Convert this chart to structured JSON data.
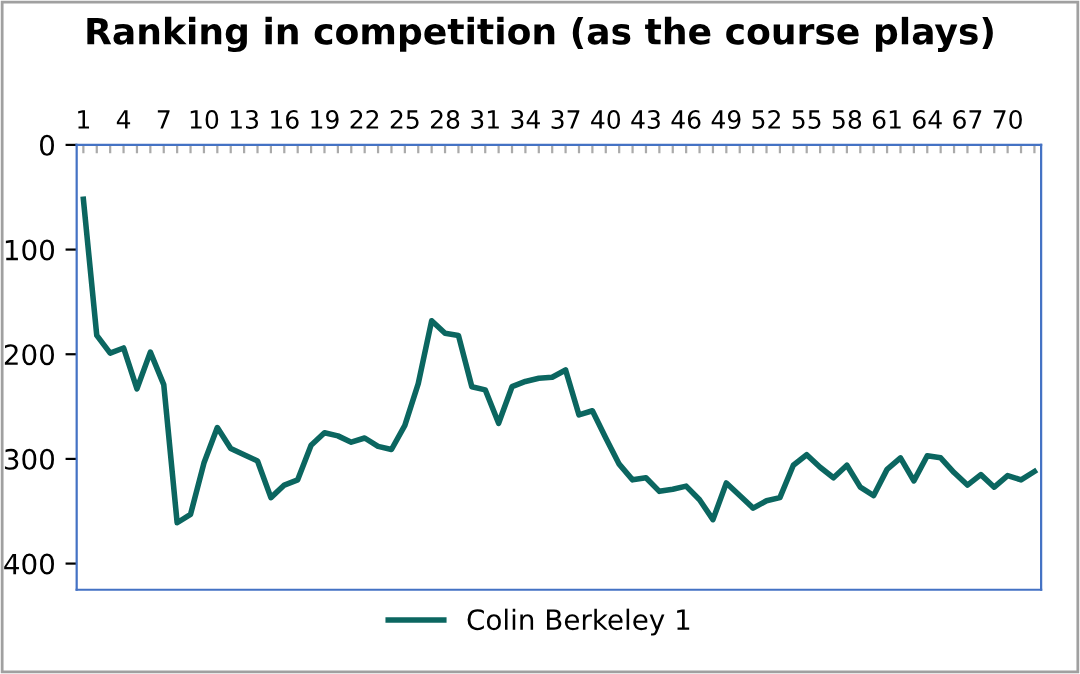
{
  "chart_data": {
    "type": "line",
    "title": "Ranking in competition (as the course plays)",
    "categories": [
      "1",
      null,
      null,
      "4",
      null,
      null,
      "7",
      null,
      null,
      "10",
      null,
      null,
      "13",
      null,
      null,
      "16",
      null,
      null,
      "19",
      null,
      null,
      "22",
      null,
      null,
      "25",
      null,
      null,
      "28",
      null,
      null,
      "31",
      null,
      null,
      "34",
      null,
      null,
      "37",
      null,
      null,
      "40",
      null,
      null,
      "43",
      null,
      null,
      "46",
      null,
      null,
      "49",
      null,
      null,
      "52",
      null,
      null,
      "55",
      null,
      null,
      "58",
      null,
      null,
      "61",
      null,
      null,
      "64",
      null,
      null,
      "67",
      null,
      null,
      "70",
      null,
      null
    ],
    "series": [
      {
        "name": "Colin Berkeley 1",
        "color": "#0b6660",
        "values": [
          52,
          182,
          199,
          194,
          233,
          198,
          229,
          361,
          353,
          304,
          270,
          290,
          296,
          302,
          337,
          325,
          320,
          287,
          275,
          278,
          284,
          280,
          288,
          291,
          268,
          228,
          168,
          180,
          182,
          231,
          234,
          266,
          231,
          226,
          223,
          222,
          215,
          258,
          254,
          280,
          305,
          320,
          318,
          331,
          329,
          326,
          339,
          358,
          323,
          335,
          347,
          340,
          337,
          306,
          296,
          308,
          318,
          306,
          327,
          335,
          310,
          299,
          321,
          297,
          299,
          313,
          325,
          315,
          327,
          316,
          320,
          312
        ]
      }
    ],
    "ylim": [
      425,
      0
    ],
    "yticks": [
      0,
      100,
      200,
      300,
      400
    ],
    "grid": false,
    "legend": "bottom",
    "marker": "none",
    "line_style": "solid"
  }
}
